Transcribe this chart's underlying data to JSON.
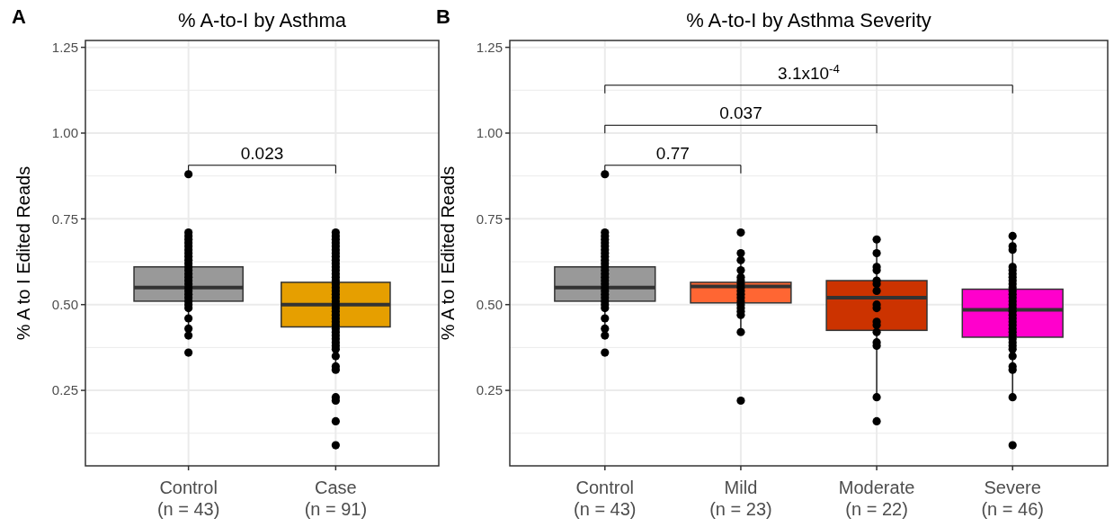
{
  "chart_data": [
    {
      "type": "box",
      "title": "% A-to-I by Asthma",
      "ylabel": "% A to I Edited Reads",
      "categories": [
        "Control\n(n = 43)",
        "Case\n(n = 91)"
      ],
      "ylim": [
        0.03,
        1.27
      ],
      "yticks": [
        {
          "value": 0.25,
          "label": "0.25"
        },
        {
          "value": 0.5,
          "label": "0.50"
        },
        {
          "value": 0.75,
          "label": "0.75"
        },
        {
          "value": 1.0,
          "label": "1.00"
        },
        {
          "value": 1.25,
          "label": "1.25"
        }
      ],
      "grid": true,
      "colors": [
        "#999999",
        "#e69f00"
      ],
      "boxes": [
        {
          "low": 0.41,
          "q1": 0.51,
          "median": 0.55,
          "q3": 0.61,
          "high": 0.71
        },
        {
          "low": 0.31,
          "q1": 0.435,
          "median": 0.5,
          "q3": 0.565,
          "high": 0.71
        }
      ],
      "series": [
        {
          "type": "scatter",
          "color": "#000000",
          "x": [
            "Control\n(n = 43)",
            "Control\n(n = 43)",
            "Control\n(n = 43)",
            "Control\n(n = 43)",
            "Control\n(n = 43)",
            "Control\n(n = 43)",
            "Control\n(n = 43)",
            "Control\n(n = 43)",
            "Control\n(n = 43)",
            "Control\n(n = 43)",
            "Control\n(n = 43)",
            "Control\n(n = 43)",
            "Control\n(n = 43)",
            "Control\n(n = 43)",
            "Control\n(n = 43)",
            "Control\n(n = 43)",
            "Control\n(n = 43)",
            "Control\n(n = 43)",
            "Control\n(n = 43)",
            "Control\n(n = 43)",
            "Control\n(n = 43)",
            "Control\n(n = 43)",
            "Control\n(n = 43)",
            "Control\n(n = 43)",
            "Control\n(n = 43)",
            "Control\n(n = 43)",
            "Control\n(n = 43)",
            "Control\n(n = 43)",
            "Case\n(n = 91)",
            "Case\n(n = 91)",
            "Case\n(n = 91)",
            "Case\n(n = 91)",
            "Case\n(n = 91)",
            "Case\n(n = 91)",
            "Case\n(n = 91)",
            "Case\n(n = 91)",
            "Case\n(n = 91)",
            "Case\n(n = 91)",
            "Case\n(n = 91)",
            "Case\n(n = 91)",
            "Case\n(n = 91)",
            "Case\n(n = 91)",
            "Case\n(n = 91)",
            "Case\n(n = 91)",
            "Case\n(n = 91)",
            "Case\n(n = 91)",
            "Case\n(n = 91)",
            "Case\n(n = 91)",
            "Case\n(n = 91)",
            "Case\n(n = 91)",
            "Case\n(n = 91)",
            "Case\n(n = 91)",
            "Case\n(n = 91)",
            "Case\n(n = 91)",
            "Case\n(n = 91)",
            "Case\n(n = 91)",
            "Case\n(n = 91)",
            "Case\n(n = 91)",
            "Case\n(n = 91)",
            "Case\n(n = 91)",
            "Case\n(n = 91)",
            "Case\n(n = 91)",
            "Case\n(n = 91)",
            "Case\n(n = 91)",
            "Case\n(n = 91)",
            "Case\n(n = 91)",
            "Case\n(n = 91)",
            "Case\n(n = 91)",
            "Case\n(n = 91)",
            "Case\n(n = 91)"
          ],
          "values": [
            0.88,
            0.71,
            0.7,
            0.69,
            0.68,
            0.67,
            0.66,
            0.65,
            0.64,
            0.63,
            0.62,
            0.61,
            0.6,
            0.59,
            0.58,
            0.57,
            0.56,
            0.55,
            0.54,
            0.53,
            0.52,
            0.51,
            0.5,
            0.49,
            0.46,
            0.43,
            0.41,
            0.36,
            0.71,
            0.7,
            0.69,
            0.68,
            0.67,
            0.66,
            0.65,
            0.64,
            0.63,
            0.62,
            0.61,
            0.6,
            0.59,
            0.58,
            0.57,
            0.56,
            0.55,
            0.54,
            0.53,
            0.52,
            0.51,
            0.5,
            0.49,
            0.48,
            0.47,
            0.46,
            0.45,
            0.44,
            0.43,
            0.42,
            0.41,
            0.4,
            0.39,
            0.38,
            0.37,
            0.35,
            0.32,
            0.31,
            0.23,
            0.22,
            0.16,
            0.09
          ]
        }
      ],
      "annotations": [
        "A",
        "0.023"
      ]
    },
    {
      "type": "box",
      "title": "% A-to-I by Asthma Severity",
      "ylabel": "% A to I Edited Reads",
      "categories": [
        "Control\n(n = 43)",
        "Mild\n(n = 23)",
        "Moderate\n(n = 22)",
        "Severe\n(n = 46)"
      ],
      "ylim": [
        0.03,
        1.27
      ],
      "yticks": [
        {
          "value": 0.25,
          "label": "0.25"
        },
        {
          "value": 0.5,
          "label": "0.50"
        },
        {
          "value": 0.75,
          "label": "0.75"
        },
        {
          "value": 1.0,
          "label": "1.00"
        },
        {
          "value": 1.25,
          "label": "1.25"
        }
      ],
      "grid": true,
      "colors": [
        "#999999",
        "#ff6633",
        "#cc3300",
        "#ff00cc"
      ],
      "boxes": [
        {
          "low": 0.41,
          "q1": 0.51,
          "median": 0.55,
          "q3": 0.61,
          "high": 0.71
        },
        {
          "low": 0.42,
          "q1": 0.505,
          "median": 0.553,
          "q3": 0.565,
          "high": 0.65
        },
        {
          "low": 0.23,
          "q1": 0.425,
          "median": 0.52,
          "q3": 0.57,
          "high": 0.69
        },
        {
          "low": 0.23,
          "q1": 0.405,
          "median": 0.485,
          "q3": 0.545,
          "high": 0.7
        }
      ],
      "series": [
        {
          "type": "scatter",
          "color": "#000000",
          "x": [
            "Control\n(n = 43)",
            "Control\n(n = 43)",
            "Control\n(n = 43)",
            "Control\n(n = 43)",
            "Control\n(n = 43)",
            "Control\n(n = 43)",
            "Control\n(n = 43)",
            "Control\n(n = 43)",
            "Control\n(n = 43)",
            "Control\n(n = 43)",
            "Control\n(n = 43)",
            "Control\n(n = 43)",
            "Control\n(n = 43)",
            "Control\n(n = 43)",
            "Control\n(n = 43)",
            "Control\n(n = 43)",
            "Control\n(n = 43)",
            "Control\n(n = 43)",
            "Control\n(n = 43)",
            "Control\n(n = 43)",
            "Control\n(n = 43)",
            "Control\n(n = 43)",
            "Control\n(n = 43)",
            "Control\n(n = 43)",
            "Control\n(n = 43)",
            "Control\n(n = 43)",
            "Control\n(n = 43)",
            "Control\n(n = 43)",
            "Mild\n(n = 23)",
            "Mild\n(n = 23)",
            "Mild\n(n = 23)",
            "Mild\n(n = 23)",
            "Mild\n(n = 23)",
            "Mild\n(n = 23)",
            "Mild\n(n = 23)",
            "Mild\n(n = 23)",
            "Mild\n(n = 23)",
            "Mild\n(n = 23)",
            "Mild\n(n = 23)",
            "Mild\n(n = 23)",
            "Mild\n(n = 23)",
            "Mild\n(n = 23)",
            "Mild\n(n = 23)",
            "Mild\n(n = 23)",
            "Mild\n(n = 23)",
            "Mild\n(n = 23)",
            "Moderate\n(n = 22)",
            "Moderate\n(n = 22)",
            "Moderate\n(n = 22)",
            "Moderate\n(n = 22)",
            "Moderate\n(n = 22)",
            "Moderate\n(n = 22)",
            "Moderate\n(n = 22)",
            "Moderate\n(n = 22)",
            "Moderate\n(n = 22)",
            "Moderate\n(n = 22)",
            "Moderate\n(n = 22)",
            "Moderate\n(n = 22)",
            "Moderate\n(n = 22)",
            "Moderate\n(n = 22)",
            "Moderate\n(n = 22)",
            "Moderate\n(n = 22)",
            "Severe\n(n = 46)",
            "Severe\n(n = 46)",
            "Severe\n(n = 46)",
            "Severe\n(n = 46)",
            "Severe\n(n = 46)",
            "Severe\n(n = 46)",
            "Severe\n(n = 46)",
            "Severe\n(n = 46)",
            "Severe\n(n = 46)",
            "Severe\n(n = 46)",
            "Severe\n(n = 46)",
            "Severe\n(n = 46)",
            "Severe\n(n = 46)",
            "Severe\n(n = 46)",
            "Severe\n(n = 46)",
            "Severe\n(n = 46)",
            "Severe\n(n = 46)",
            "Severe\n(n = 46)",
            "Severe\n(n = 46)",
            "Severe\n(n = 46)",
            "Severe\n(n = 46)",
            "Severe\n(n = 46)",
            "Severe\n(n = 46)",
            "Severe\n(n = 46)",
            "Severe\n(n = 46)",
            "Severe\n(n = 46)",
            "Severe\n(n = 46)",
            "Severe\n(n = 46)",
            "Severe\n(n = 46)",
            "Severe\n(n = 46)",
            "Severe\n(n = 46)",
            "Severe\n(n = 46)",
            "Severe\n(n = 46)"
          ],
          "values": [
            0.88,
            0.71,
            0.7,
            0.69,
            0.68,
            0.67,
            0.66,
            0.65,
            0.64,
            0.63,
            0.62,
            0.61,
            0.6,
            0.59,
            0.58,
            0.57,
            0.56,
            0.55,
            0.54,
            0.53,
            0.52,
            0.51,
            0.5,
            0.49,
            0.46,
            0.43,
            0.41,
            0.36,
            0.71,
            0.65,
            0.63,
            0.6,
            0.58,
            0.57,
            0.56,
            0.55,
            0.54,
            0.53,
            0.52,
            0.51,
            0.5,
            0.49,
            0.48,
            0.47,
            0.42,
            0.22,
            0.69,
            0.65,
            0.61,
            0.6,
            0.57,
            0.56,
            0.54,
            0.5,
            0.49,
            0.45,
            0.44,
            0.42,
            0.39,
            0.38,
            0.23,
            0.16,
            0.7,
            0.67,
            0.66,
            0.61,
            0.6,
            0.59,
            0.58,
            0.57,
            0.56,
            0.55,
            0.54,
            0.53,
            0.52,
            0.51,
            0.5,
            0.49,
            0.48,
            0.47,
            0.46,
            0.45,
            0.44,
            0.43,
            0.42,
            0.41,
            0.4,
            0.39,
            0.38,
            0.37,
            0.35,
            0.32,
            0.31,
            0.23,
            0.09
          ]
        }
      ],
      "annotations": [
        "B",
        "0.77",
        "0.037",
        "3.1x10$^{-4}$"
      ]
    }
  ]
}
